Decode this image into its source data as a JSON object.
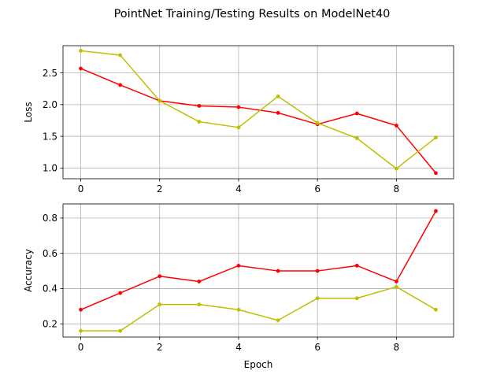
{
  "chart_data": {
    "type": "line",
    "title": "PointNet Training/Testing Results on ModelNet40",
    "xlabel": "Epoch",
    "grid": true,
    "marker": "dot",
    "panels": [
      {
        "ylabel": "Loss",
        "xlim": [
          -0.45,
          9.45
        ],
        "ylim": [
          0.83,
          2.93
        ],
        "xticks": [
          0,
          2,
          4,
          6,
          8
        ],
        "yticks": [
          1.0,
          1.5,
          2.0,
          2.5
        ],
        "ytick_labels": [
          "1.0",
          "1.5",
          "2.0",
          "2.5"
        ],
        "series": [
          {
            "color": "#ff0000",
            "x": [
              0,
              1,
              2,
              3,
              4,
              5,
              6,
              7,
              8,
              9
            ],
            "y": [
              2.57,
              2.31,
              2.06,
              1.98,
              1.96,
              1.87,
              1.69,
              1.86,
              1.67,
              0.92
            ]
          },
          {
            "color": "#bfbf00",
            "x": [
              0,
              1,
              2,
              3,
              4,
              5,
              6,
              7,
              8,
              9
            ],
            "y": [
              2.85,
              2.78,
              2.06,
              1.73,
              1.64,
              2.13,
              1.71,
              1.47,
              0.99,
              1.48
            ]
          }
        ]
      },
      {
        "ylabel": "Accuracy",
        "xlim": [
          -0.45,
          9.45
        ],
        "ylim": [
          0.125,
          0.88
        ],
        "xticks": [
          0,
          2,
          4,
          6,
          8
        ],
        "yticks": [
          0.2,
          0.4,
          0.6,
          0.8
        ],
        "ytick_labels": [
          "0.2",
          "0.4",
          "0.6",
          "0.8"
        ],
        "series": [
          {
            "color": "#ff0000",
            "x": [
              0,
              1,
              2,
              3,
              4,
              5,
              6,
              7,
              8,
              9
            ],
            "y": [
              0.28,
              0.375,
              0.47,
              0.44,
              0.53,
              0.5,
              0.5,
              0.53,
              0.44,
              0.84
            ]
          },
          {
            "color": "#bfbf00",
            "x": [
              0,
              1,
              2,
              3,
              4,
              5,
              6,
              7,
              8,
              9
            ],
            "y": [
              0.16,
              0.16,
              0.31,
              0.31,
              0.28,
              0.22,
              0.345,
              0.345,
              0.41,
              0.28
            ]
          }
        ]
      }
    ]
  }
}
